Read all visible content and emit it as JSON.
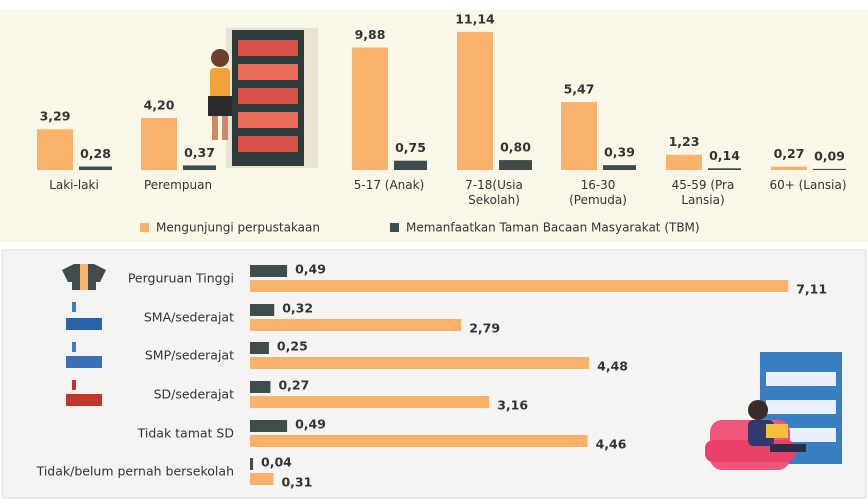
{
  "chart_data": [
    {
      "type": "bar",
      "categories": [
        "Laki-laki",
        "Perempuan",
        "5-17 (Anak)",
        "7-18(Usia Sekolah)",
        "16-30 (Pemuda)",
        "45-59 (Pra Lansia)",
        "60+ (Lansia)"
      ],
      "series": [
        {
          "name": "Mengunjungi perpustakaan",
          "color": "#f8b26a",
          "values": [
            3.29,
            4.2,
            9.88,
            11.14,
            5.47,
            1.23,
            0.27
          ],
          "value_labels": [
            "3,29",
            "4,20",
            "9,88",
            "11,14",
            "5,47",
            "1,23",
            "0,27"
          ]
        },
        {
          "name": "Memanfaatkan Taman Bacaan Masyarakat (TBM)",
          "color": "#3e4c4e",
          "values": [
            0.28,
            0.37,
            0.75,
            0.8,
            0.39,
            0.14,
            0.09
          ],
          "value_labels": [
            "0,28",
            "0,37",
            "0,75",
            "0,80",
            "0,39",
            "0,14",
            "0,09"
          ]
        }
      ],
      "legend": "bottom"
    },
    {
      "type": "hbar",
      "categories": [
        "Perguruan Tinggi",
        "SMA/sederajat",
        "SMP/sederajat",
        "SD/sederajat",
        "Tidak tamat SD",
        "Tidak/belum pernah bersekolah"
      ],
      "series": [
        {
          "color": "#3e4c4e",
          "values": [
            0.49,
            0.32,
            0.25,
            0.27,
            0.49,
            0.04
          ],
          "value_labels": [
            "0,49",
            "0,32",
            "0,25",
            "0,27",
            "0,49",
            "0,04"
          ]
        },
        {
          "color": "#f8b26a",
          "values": [
            7.11,
            2.79,
            4.48,
            3.16,
            4.46,
            0.31
          ],
          "value_labels": [
            "7,11",
            "2,79",
            "4,48",
            "3,16",
            "4,46",
            "0,31"
          ]
        }
      ]
    }
  ]
}
